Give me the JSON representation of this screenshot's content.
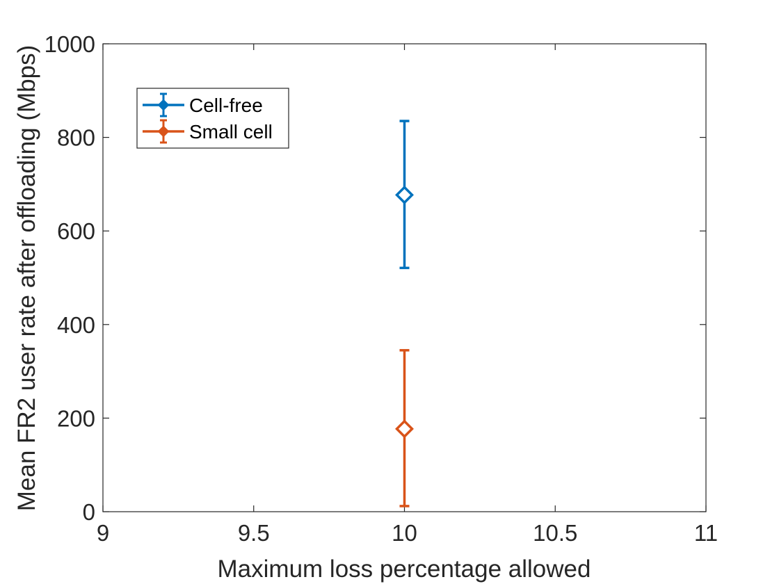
{
  "chart_data": {
    "type": "scatter",
    "title": "",
    "xlabel": "Maximum loss percentage allowed",
    "ylabel": "Mean FR2 user rate after offloading (Mbps)",
    "xlim": [
      9,
      11
    ],
    "ylim": [
      0,
      1000
    ],
    "xticks": [
      "9",
      "9.5",
      "10",
      "10.5",
      "11"
    ],
    "yticks": [
      "0",
      "200",
      "400",
      "600",
      "800",
      "1000"
    ],
    "grid": false,
    "legend_position": "top-left",
    "series": [
      {
        "name": "Cell-free",
        "color": "#0072BD",
        "marker": "diamond",
        "x": [
          10
        ],
        "y": [
          677
        ],
        "yerr_low": [
          521
        ],
        "yerr_high": [
          835
        ]
      },
      {
        "name": "Small cell",
        "color": "#D95319",
        "marker": "diamond",
        "x": [
          10
        ],
        "y": [
          177
        ],
        "yerr_low": [
          12
        ],
        "yerr_high": [
          345
        ]
      }
    ]
  }
}
